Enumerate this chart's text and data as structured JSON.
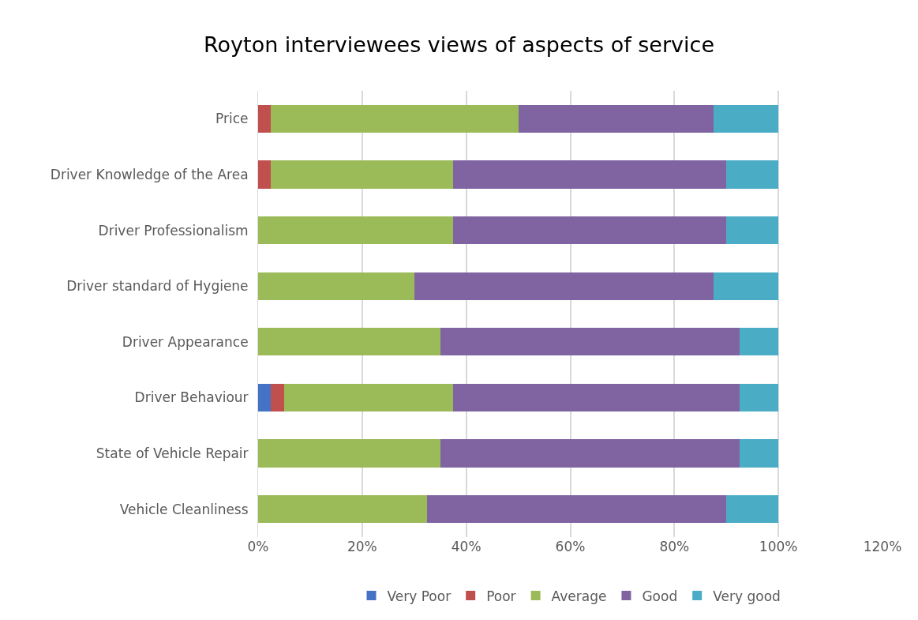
{
  "chart_data": {
    "type": "bar",
    "orientation": "horizontal",
    "stacked": true,
    "title": "Royton interviewees views of aspects of service",
    "categories": [
      "Price",
      "Driver Knowledge of the Area",
      "Driver Professionalism",
      "Driver standard of Hygiene",
      "Driver Appearance",
      "Driver Behaviour",
      "State of Vehicle Repair",
      "Vehicle Cleanliness"
    ],
    "series": [
      {
        "name": "Very Poor",
        "color": "#4472c4",
        "values": [
          0,
          0,
          0,
          0,
          0,
          2.5,
          0,
          0
        ]
      },
      {
        "name": "Poor",
        "color": "#c0504d",
        "values": [
          2.5,
          2.5,
          0,
          0,
          0,
          2.5,
          0,
          0
        ]
      },
      {
        "name": "Average",
        "color": "#9bbb59",
        "values": [
          47.5,
          35,
          37.5,
          30,
          35,
          32.5,
          35,
          32.5
        ]
      },
      {
        "name": "Good",
        "color": "#8064a2",
        "values": [
          37.5,
          52.5,
          52.5,
          57.5,
          57.5,
          55,
          57.5,
          57.5
        ]
      },
      {
        "name": "Very good",
        "color": "#4bacc6",
        "values": [
          12.5,
          10,
          10,
          12.5,
          7.5,
          7.5,
          7.5,
          10
        ]
      }
    ],
    "xlim": [
      0,
      120
    ],
    "xticks": [
      {
        "value": 0,
        "label": "0%"
      },
      {
        "value": 20,
        "label": "20%"
      },
      {
        "value": 40,
        "label": "40%"
      },
      {
        "value": 60,
        "label": "60%"
      },
      {
        "value": 80,
        "label": "80%"
      },
      {
        "value": 100,
        "label": "100%"
      },
      {
        "value": 120,
        "label": "120%"
      }
    ],
    "grid": "x",
    "legend": "bottom"
  }
}
